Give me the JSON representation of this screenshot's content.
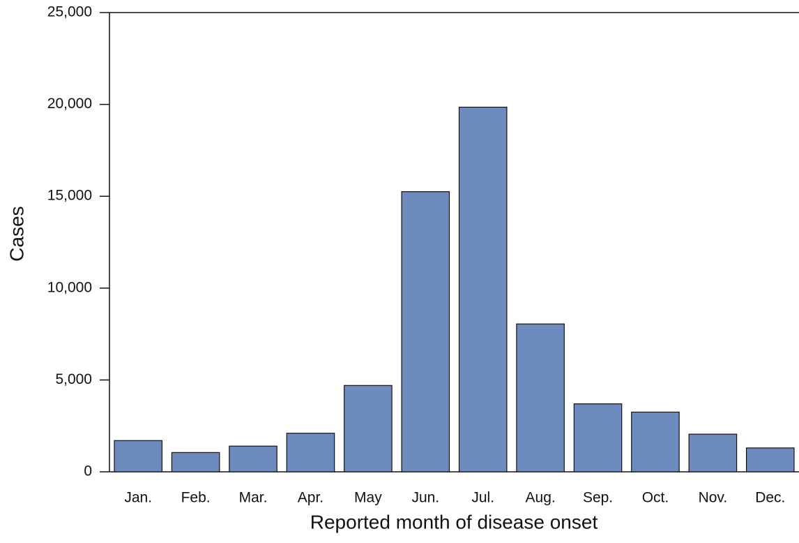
{
  "chart_data": {
    "type": "bar",
    "x_label": "Reported month of disease onset",
    "y_label": "Cases",
    "categories": [
      "Jan.",
      "Feb.",
      "Mar.",
      "Apr.",
      "May",
      "Jun.",
      "Jul.",
      "Aug.",
      "Sep.",
      "Oct.",
      "Nov.",
      "Dec."
    ],
    "values": [
      1700,
      1050,
      1400,
      2100,
      4700,
      15250,
      19850,
      8050,
      3700,
      3250,
      2050,
      1300
    ],
    "color": "#6d8bbf",
    "ylim": [
      0,
      25000
    ],
    "yticks": [
      0,
      {
        "value": 5000,
        "label": "5,000"
      },
      {
        "value": 10000,
        "label": "10,000"
      },
      {
        "value": 15000,
        "label": "15,000"
      },
      {
        "value": 20000,
        "label": "20,000"
      },
      {
        "value": 25000,
        "label": "25,000"
      }
    ]
  }
}
